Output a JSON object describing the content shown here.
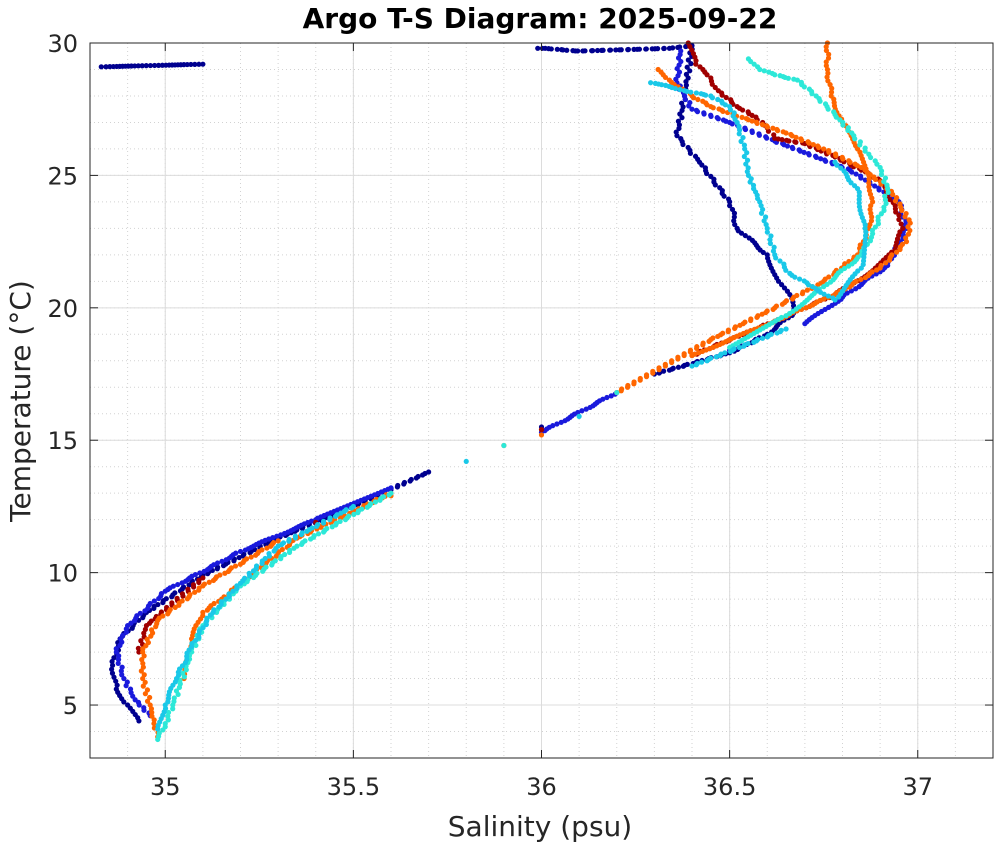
{
  "chart_data": {
    "type": "scatter",
    "title": "Argo T-S Diagram: 2025-09-22",
    "xlabel": "Salinity (psu)",
    "ylabel": "Temperature (°C)",
    "xlim": [
      34.8,
      37.2
    ],
    "ylim": [
      3,
      30
    ],
    "x_ticks": [
      35,
      35.5,
      36,
      36.5,
      37
    ],
    "x_tick_labels": [
      "35",
      "35.5",
      "36",
      "36.5",
      "37"
    ],
    "y_ticks": [
      5,
      10,
      15,
      20,
      25,
      30
    ],
    "y_tick_labels": [
      "5",
      "10",
      "15",
      "20",
      "25",
      "30"
    ],
    "grid": true,
    "minor_grid": true,
    "legend": "none",
    "series": [
      {
        "color": "#00008f",
        "points": [
          [
            34.83,
            29.1
          ],
          [
            35.1,
            29.2
          ],
          [
            35.99,
            29.8
          ],
          [
            36.01,
            29.8
          ],
          [
            36.09,
            29.7
          ],
          [
            36.11,
            29.7
          ],
          [
            36.34,
            29.8
          ],
          [
            36.4,
            29.9
          ],
          [
            36.38,
            28.0
          ],
          [
            36.36,
            26.5
          ],
          [
            36.42,
            25.5
          ],
          [
            36.5,
            24.0
          ],
          [
            36.52,
            23.0
          ],
          [
            36.6,
            22.0
          ],
          [
            36.63,
            21.0
          ],
          [
            36.66,
            20.5
          ],
          [
            36.67,
            19.8
          ],
          [
            36.6,
            19.0
          ],
          [
            36.5,
            18.3
          ],
          [
            36.3,
            17.5
          ],
          [
            36.0,
            15.5
          ],
          [
            35.7,
            13.8
          ],
          [
            35.5,
            12.5
          ],
          [
            35.3,
            11.3
          ],
          [
            35.1,
            9.9
          ],
          [
            34.95,
            8.5
          ],
          [
            34.88,
            7.5
          ],
          [
            34.86,
            6.5
          ],
          [
            34.87,
            5.6
          ],
          [
            34.9,
            5.0
          ],
          [
            34.93,
            4.4
          ]
        ]
      },
      {
        "color": "#1a1adc",
        "points": [
          [
            36.7,
            19.4
          ],
          [
            36.8,
            20.4
          ],
          [
            36.92,
            21.6
          ],
          [
            36.97,
            23.0
          ],
          [
            36.95,
            24.0
          ],
          [
            36.82,
            25.2
          ],
          [
            36.62,
            26.3
          ],
          [
            36.5,
            27.0
          ],
          [
            36.4,
            27.5
          ],
          [
            36.36,
            28.5
          ],
          [
            36.37,
            29.7
          ],
          [
            36.5,
            18.4
          ],
          [
            36.2,
            16.8
          ],
          [
            36.0,
            15.3
          ],
          [
            35.6,
            13.2
          ],
          [
            35.4,
            12.0
          ],
          [
            35.2,
            10.8
          ],
          [
            35.0,
            9.3
          ],
          [
            34.9,
            8.0
          ],
          [
            34.87,
            7.0
          ],
          [
            34.89,
            6.0
          ],
          [
            34.92,
            5.2
          ],
          [
            34.96,
            4.6
          ]
        ]
      },
      {
        "color": "#a00000",
        "points": [
          [
            36.39,
            30.0
          ],
          [
            36.41,
            29.2
          ],
          [
            36.44,
            28.8
          ],
          [
            36.47,
            28.2
          ],
          [
            36.52,
            27.6
          ],
          [
            36.57,
            27.2
          ],
          [
            36.6,
            26.8
          ],
          [
            36.62,
            26.4
          ],
          [
            36.7,
            26.2
          ],
          [
            36.78,
            25.7
          ],
          [
            36.85,
            25.2
          ],
          [
            36.9,
            24.8
          ],
          [
            36.95,
            23.5
          ],
          [
            36.96,
            23.0
          ],
          [
            36.94,
            22.2
          ],
          [
            36.88,
            21.4
          ],
          [
            36.78,
            20.5
          ],
          [
            36.62,
            19.5
          ],
          [
            36.4,
            18.2
          ],
          [
            36.0,
            15.4
          ],
          [
            35.4,
            11.9
          ],
          [
            35.1,
            9.8
          ],
          [
            34.95,
            8.0
          ],
          [
            34.93,
            7.0
          ]
        ]
      },
      {
        "color": "#ff6600",
        "points": [
          [
            36.31,
            29.0
          ],
          [
            36.34,
            28.6
          ],
          [
            36.4,
            28.0
          ],
          [
            36.45,
            27.6
          ],
          [
            36.55,
            27.1
          ],
          [
            36.65,
            26.6
          ],
          [
            36.75,
            26.0
          ],
          [
            36.85,
            25.3
          ],
          [
            36.93,
            24.4
          ],
          [
            36.98,
            23.2
          ],
          [
            36.97,
            22.5
          ],
          [
            36.9,
            21.5
          ],
          [
            36.78,
            20.5
          ],
          [
            36.62,
            19.5
          ],
          [
            36.4,
            18.2
          ],
          [
            36.0,
            15.2
          ],
          [
            35.6,
            12.9
          ],
          [
            35.3,
            11.2
          ],
          [
            35.1,
            9.5
          ],
          [
            34.98,
            8.2
          ],
          [
            34.94,
            7.0
          ],
          [
            34.94,
            6.0
          ],
          [
            34.96,
            5.0
          ],
          [
            34.97,
            4.3
          ],
          [
            34.98,
            3.8
          ],
          [
            36.76,
            30.0
          ],
          [
            36.76,
            29.0
          ],
          [
            36.77,
            28.0
          ],
          [
            36.8,
            27.0
          ],
          [
            36.84,
            26.0
          ],
          [
            36.87,
            25.0
          ],
          [
            36.88,
            24.0
          ],
          [
            36.87,
            23.0
          ],
          [
            36.84,
            22.0
          ],
          [
            36.75,
            21.0
          ],
          [
            36.62,
            20.0
          ],
          [
            36.45,
            18.8
          ],
          [
            36.2,
            16.8
          ],
          [
            35.9,
            14.8
          ],
          [
            35.6,
            13.0
          ],
          [
            35.35,
            11.3
          ],
          [
            35.15,
            9.0
          ],
          [
            35.1,
            8.5
          ],
          [
            35.07,
            7.5
          ],
          [
            35.05,
            6.5
          ],
          [
            35.05,
            6.0
          ]
        ]
      },
      {
        "color": "#2de8d8",
        "points": [
          [
            36.55,
            29.4
          ],
          [
            36.58,
            29.0
          ],
          [
            36.62,
            28.8
          ],
          [
            36.68,
            28.6
          ],
          [
            36.73,
            28.0
          ],
          [
            36.78,
            27.3
          ],
          [
            36.83,
            26.5
          ],
          [
            36.87,
            25.8
          ],
          [
            36.9,
            25.3
          ],
          [
            36.92,
            24.5
          ],
          [
            36.91,
            23.8
          ],
          [
            36.88,
            22.8
          ],
          [
            36.85,
            22.0
          ],
          [
            36.75,
            20.8
          ],
          [
            36.65,
            19.7
          ],
          [
            36.5,
            18.5
          ],
          [
            36.2,
            16.8
          ],
          [
            35.9,
            14.8
          ],
          [
            35.6,
            13.0
          ],
          [
            35.35,
            11.0
          ],
          [
            35.2,
            9.5
          ],
          [
            35.1,
            8.0
          ],
          [
            35.07,
            7.0
          ],
          [
            35.04,
            5.8
          ],
          [
            35.02,
            5.0
          ],
          [
            35.0,
            4.3
          ],
          [
            34.98,
            3.7
          ]
        ]
      },
      {
        "color": "#1ac8e8",
        "points": [
          [
            36.29,
            28.5
          ],
          [
            36.33,
            28.4
          ],
          [
            36.38,
            28.2
          ],
          [
            36.45,
            28.0
          ],
          [
            36.5,
            27.6
          ],
          [
            36.52,
            27.0
          ],
          [
            36.54,
            26.0
          ],
          [
            36.55,
            25.0
          ],
          [
            36.58,
            24.0
          ],
          [
            36.6,
            23.0
          ],
          [
            36.62,
            22.0
          ],
          [
            36.66,
            21.3
          ],
          [
            36.72,
            20.8
          ],
          [
            36.78,
            20.3
          ],
          [
            36.85,
            21.5
          ],
          [
            36.86,
            23.0
          ],
          [
            36.84,
            24.5
          ],
          [
            36.78,
            25.5
          ],
          [
            36.65,
            19.2
          ],
          [
            36.4,
            17.8
          ],
          [
            36.1,
            15.9
          ],
          [
            35.8,
            14.2
          ],
          [
            35.5,
            12.5
          ],
          [
            35.3,
            11.0
          ],
          [
            35.2,
            9.6
          ],
          [
            35.12,
            8.4
          ],
          [
            35.07,
            7.2
          ],
          [
            35.03,
            6.0
          ],
          [
            35.0,
            5.0
          ],
          [
            34.98,
            4.1
          ]
        ]
      }
    ]
  }
}
